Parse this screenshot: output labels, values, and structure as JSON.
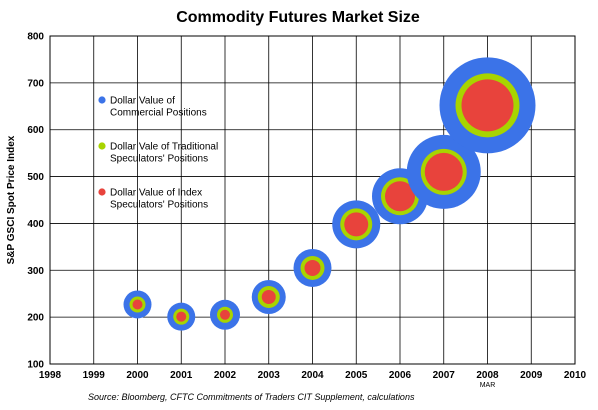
{
  "chart_data": {
    "type": "bubble",
    "title": "Commodity Futures Market Size",
    "ylabel": "S&P GSCI Spot Price Index",
    "xlabel": "",
    "xlim": [
      1998,
      2010
    ],
    "ylim": [
      100,
      800
    ],
    "xticks": [
      "1998",
      "1999",
      "2000",
      "2001",
      "2002",
      "2003",
      "2004",
      "2005",
      "2006",
      "2007",
      "2008",
      "2009",
      "2010"
    ],
    "yticks": [
      "100",
      "200",
      "300",
      "400",
      "500",
      "600",
      "700",
      "800"
    ],
    "x_annotation": {
      "x": 2008,
      "text": "MAR"
    },
    "grid": true,
    "legend_position": "upper-left inside plot",
    "series": [
      {
        "name": "Dollar Value of Commercial Positions",
        "color": "#3b73e8",
        "legend_lines": [
          "Dollar Value of",
          "Commercial Positions"
        ],
        "sizes": [
          14,
          14,
          15,
          17,
          19,
          24,
          28,
          37,
          48
        ]
      },
      {
        "name": "Dollar Vale of Traditional Speculators' Positions",
        "color": "#a8d400",
        "legend_lines": [
          "Dollar Vale of Traditional",
          "Speculators' Positions"
        ],
        "sizes": [
          8,
          8,
          8,
          11,
          12,
          16,
          19,
          23,
          32
        ]
      },
      {
        "name": "Dollar Value of Index Speculators' Positions",
        "color": "#e8433c",
        "legend_lines": [
          "Dollar Value of Index",
          "Speculators' Positions"
        ],
        "sizes": [
          5,
          5,
          5,
          7,
          8,
          12,
          15,
          19,
          26
        ]
      }
    ],
    "points": [
      {
        "x": 2000,
        "y": 227
      },
      {
        "x": 2001,
        "y": 201
      },
      {
        "x": 2002,
        "y": 205
      },
      {
        "x": 2003,
        "y": 243
      },
      {
        "x": 2004,
        "y": 305
      },
      {
        "x": 2005,
        "y": 398
      },
      {
        "x": 2006,
        "y": 458
      },
      {
        "x": 2007,
        "y": 510
      },
      {
        "x": 2008,
        "y": 652
      }
    ],
    "source": "Source: Bloomberg, CFTC Commitments of Traders CIT Supplement, calculations"
  }
}
